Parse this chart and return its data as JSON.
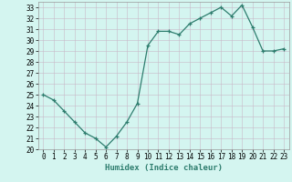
{
  "x": [
    0,
    1,
    2,
    3,
    4,
    5,
    6,
    7,
    8,
    9,
    10,
    11,
    12,
    13,
    14,
    15,
    16,
    17,
    18,
    19,
    20,
    21,
    22,
    23
  ],
  "y": [
    25.0,
    24.5,
    23.5,
    22.5,
    21.5,
    21.0,
    20.2,
    21.2,
    22.5,
    24.2,
    29.5,
    30.8,
    30.8,
    30.5,
    31.5,
    32.0,
    32.5,
    33.0,
    32.2,
    33.2,
    31.2,
    29.0,
    29.0,
    29.2
  ],
  "xlabel": "Humidex (Indice chaleur)",
  "ylim": [
    20,
    33.5
  ],
  "xlim": [
    -0.5,
    23.5
  ],
  "yticks": [
    20,
    21,
    22,
    23,
    24,
    25,
    26,
    27,
    28,
    29,
    30,
    31,
    32,
    33
  ],
  "xticks": [
    0,
    1,
    2,
    3,
    4,
    5,
    6,
    7,
    8,
    9,
    10,
    11,
    12,
    13,
    14,
    15,
    16,
    17,
    18,
    19,
    20,
    21,
    22,
    23
  ],
  "line_color": "#2e7d6e",
  "marker": "+",
  "bg_color": "#d4f5f0",
  "grid_color_major": "#c8b8c8",
  "grid_color_minor": "#c8b8c8",
  "tick_fontsize": 5.5,
  "label_fontsize": 6.5
}
